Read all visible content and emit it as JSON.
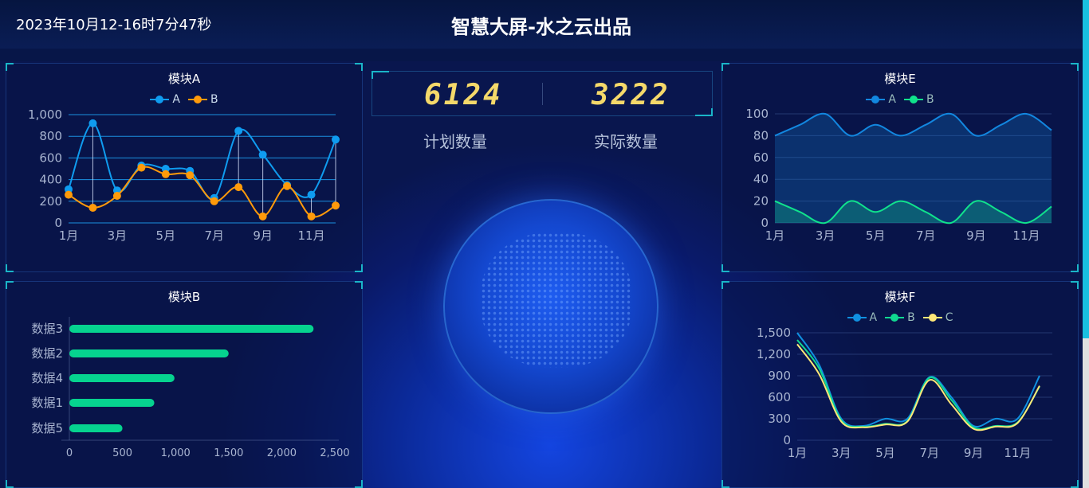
{
  "header": {
    "datetime": "2023年10月12-16时7分47秒",
    "title": "智慧大屏-水之云出品"
  },
  "kpi": {
    "planned_value": "6124",
    "planned_label": "计划数量",
    "actual_value": "3222",
    "actual_label": "实际数量",
    "digit_color": "#f5d96a"
  },
  "chart_data": [
    {
      "id": "A",
      "type": "line",
      "title": "模块A",
      "smooth": true,
      "categories": [
        "1月",
        "2月",
        "3月",
        "4月",
        "5月",
        "6月",
        "7月",
        "8月",
        "9月",
        "10月",
        "11月",
        "12月"
      ],
      "x_tick_labels": [
        "1月",
        "3月",
        "5月",
        "7月",
        "9月",
        "11月"
      ],
      "ylim": [
        0,
        1000
      ],
      "y_ticks": [
        "0",
        "200",
        "400",
        "600",
        "800",
        "1,000"
      ],
      "grid": true,
      "legend": "top",
      "series": [
        {
          "name": "A",
          "color": "#0f9cf0",
          "values": [
            310,
            920,
            300,
            530,
            500,
            480,
            230,
            850,
            630,
            350,
            260,
            770
          ]
        },
        {
          "name": "B",
          "color": "#ff9a0a",
          "values": [
            260,
            140,
            250,
            510,
            450,
            440,
            200,
            330,
            60,
            340,
            60,
            160
          ]
        }
      ]
    },
    {
      "id": "B",
      "type": "bar",
      "orientation": "horizontal",
      "title": "模块B",
      "categories": [
        "数据3",
        "数据2",
        "数据4",
        "数据1",
        "数据5"
      ],
      "values": [
        2300,
        1500,
        990,
        800,
        500
      ],
      "xlim": [
        0,
        2500
      ],
      "x_ticks": [
        "0",
        "500",
        "1,000",
        "1,500",
        "2,000",
        "2,500"
      ],
      "color": "#06d38f"
    },
    {
      "id": "E",
      "type": "area",
      "title": "模块E",
      "smooth": true,
      "categories": [
        "1月",
        "2月",
        "3月",
        "4月",
        "5月",
        "6月",
        "7月",
        "8月",
        "9月",
        "10月",
        "11月",
        "12月"
      ],
      "x_tick_labels": [
        "1月",
        "3月",
        "5月",
        "7月",
        "9月",
        "11月"
      ],
      "ylim": [
        0,
        100
      ],
      "y_ticks": [
        "0",
        "20",
        "40",
        "60",
        "80",
        "100"
      ],
      "grid": true,
      "legend": "top",
      "series": [
        {
          "name": "A",
          "color": "#1287e0",
          "values": [
            80,
            90,
            100,
            80,
            90,
            80,
            90,
            100,
            80,
            90,
            100,
            85
          ]
        },
        {
          "name": "B",
          "color": "#10e28c",
          "values": [
            20,
            10,
            0,
            20,
            10,
            20,
            10,
            0,
            20,
            10,
            0,
            15
          ]
        }
      ]
    },
    {
      "id": "F",
      "type": "line",
      "title": "模块F",
      "smooth": true,
      "categories": [
        "1月",
        "2月",
        "3月",
        "4月",
        "5月",
        "6月",
        "7月",
        "8月",
        "9月",
        "10月",
        "11月",
        "12月"
      ],
      "x_tick_labels": [
        "1月",
        "3月",
        "5月",
        "7月",
        "9月",
        "11月"
      ],
      "ylim": [
        0,
        1500
      ],
      "y_ticks": [
        "0",
        "300",
        "600",
        "900",
        "1,200",
        "1,500"
      ],
      "grid": true,
      "legend": "top",
      "series": [
        {
          "name": "A",
          "color": "#1090e0",
          "values": [
            1500,
            1050,
            300,
            200,
            300,
            300,
            880,
            600,
            200,
            300,
            300,
            900
          ]
        },
        {
          "name": "B",
          "color": "#10d890",
          "values": [
            1400,
            1000,
            280,
            190,
            230,
            270,
            870,
            560,
            180,
            200,
            250,
            750
          ]
        },
        {
          "name": "C",
          "color": "#ffe878",
          "values": [
            1340,
            920,
            260,
            180,
            220,
            260,
            840,
            500,
            160,
            190,
            240,
            760
          ]
        }
      ]
    }
  ]
}
